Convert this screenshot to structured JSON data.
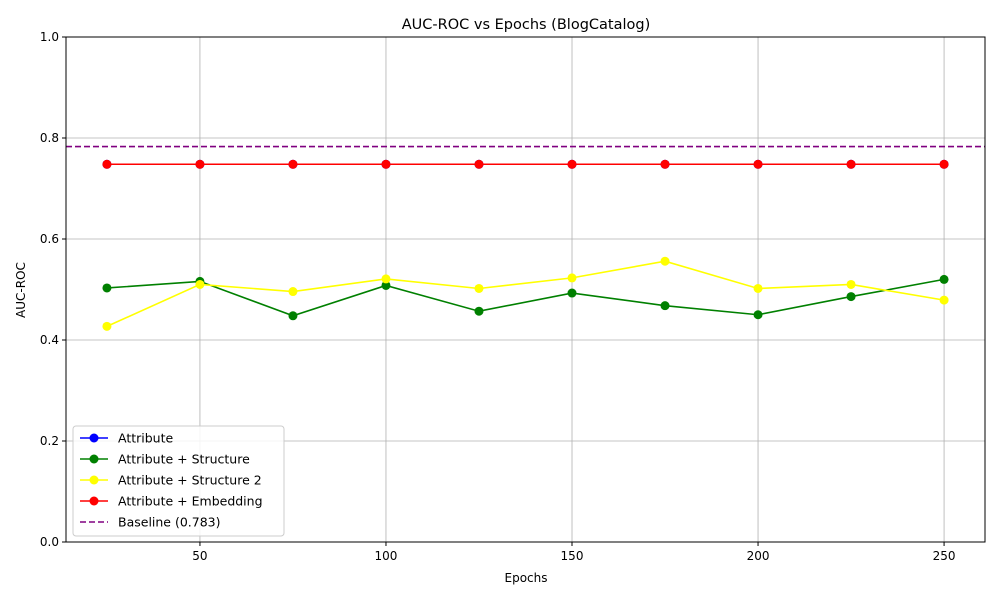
{
  "chart_data": {
    "type": "line",
    "title": "AUC-ROC vs Epochs (BlogCatalog)",
    "xlabel": "Epochs",
    "ylabel": "AUC-ROC",
    "xlim": [
      14,
      261
    ],
    "ylim": [
      0.0,
      1.0
    ],
    "xticks": [
      50,
      100,
      150,
      200,
      250
    ],
    "yticks": [
      0.0,
      0.2,
      0.4,
      0.6,
      0.8,
      1.0
    ],
    "ytick_labels": [
      "0.0",
      "0.2",
      "0.4",
      "0.6",
      "0.8",
      "1.0"
    ],
    "grid": true,
    "legend_position": "lower-left",
    "x": [
      25,
      50,
      75,
      100,
      125,
      150,
      175,
      200,
      225,
      250
    ],
    "series": [
      {
        "name": "Attribute",
        "color": "#0000ff",
        "values": [
          0.748,
          0.748,
          0.748,
          0.748,
          0.748,
          0.748,
          0.748,
          0.748,
          0.748,
          0.748
        ]
      },
      {
        "name": "Attribute + Structure",
        "color": "#008000",
        "values": [
          0.503,
          0.516,
          0.448,
          0.508,
          0.457,
          0.493,
          0.468,
          0.45,
          0.486,
          0.52
        ]
      },
      {
        "name": "Attribute + Structure 2",
        "color": "#ffff00",
        "values": [
          0.427,
          0.51,
          0.496,
          0.521,
          0.502,
          0.523,
          0.556,
          0.502,
          0.51,
          0.479
        ]
      },
      {
        "name": "Attribute + Embedding",
        "color": "#ff0000",
        "values": [
          0.748,
          0.748,
          0.748,
          0.748,
          0.748,
          0.748,
          0.748,
          0.748,
          0.748,
          0.748
        ]
      }
    ],
    "baseline": {
      "name": "Baseline (0.783)",
      "value": 0.783,
      "color": "#800080"
    }
  }
}
